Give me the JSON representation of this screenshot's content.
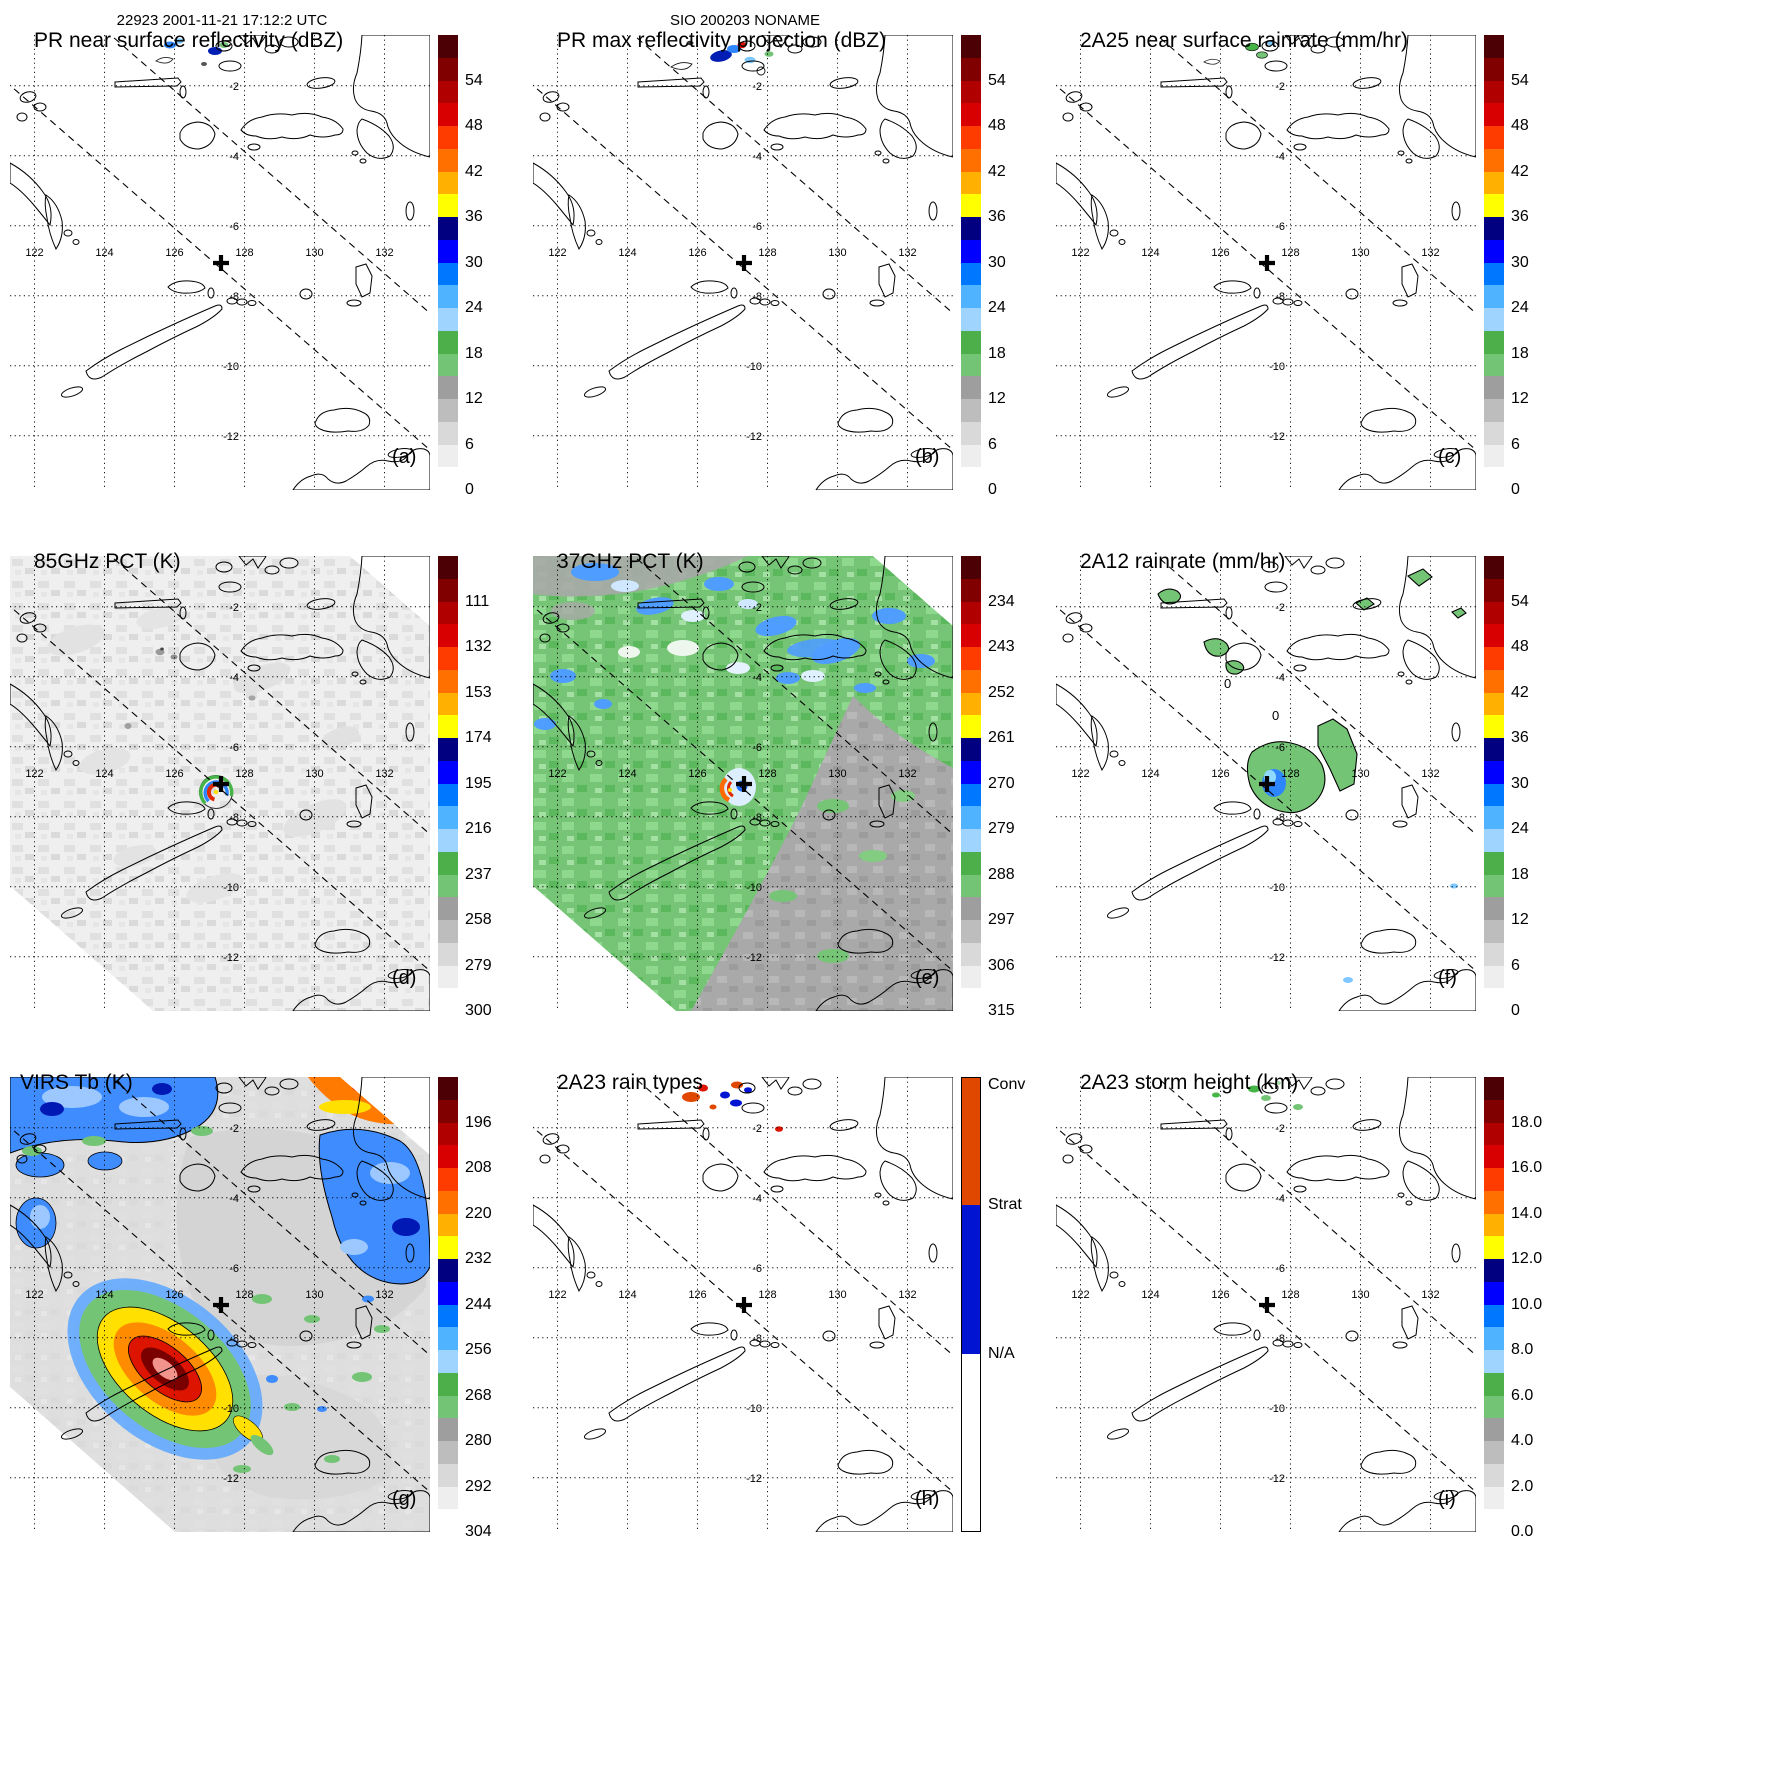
{
  "header": {
    "left_title": "22923 2001-11-21 17:12:2 UTC",
    "center_title": "SIO 200203 NONAME"
  },
  "axes": {
    "lon_ticks": [
      "122",
      "124",
      "126",
      "128",
      "130",
      "132"
    ],
    "lat_ticks": [
      "-2",
      "-4",
      "-6",
      "-8",
      "-10",
      "-12"
    ]
  },
  "marker": {
    "symbol": "+",
    "approx_position": "127.4E, 6.9S"
  },
  "scales": {
    "spectral_colors": [
      "#4c0005",
      "#800000",
      "#b00000",
      "#d80000",
      "#ff3c00",
      "#ff7000",
      "#ffb000",
      "#ffff00",
      "#000080",
      "#0000ff",
      "#0077ff",
      "#4fb3ff",
      "#9fd4ff",
      "#4daf4a",
      "#74c476",
      "#9e9e9e",
      "#bdbdbd",
      "#d9d9d9",
      "#eeeeee",
      "#ffffff"
    ],
    "raintype_colors": {
      "conv": "#e04800",
      "strat": "#0014d2",
      "na": "#ffffff"
    }
  },
  "colorbars": {
    "dbz": {
      "ticks": [
        "54",
        "48",
        "42",
        "36",
        "30",
        "24",
        "18",
        "12",
        "6",
        "0"
      ]
    },
    "pct85": {
      "ticks": [
        "111",
        "132",
        "153",
        "174",
        "195",
        "216",
        "237",
        "258",
        "279",
        "300"
      ]
    },
    "pct37": {
      "ticks": [
        "234",
        "243",
        "252",
        "261",
        "270",
        "279",
        "288",
        "297",
        "306",
        "315"
      ]
    },
    "virs": {
      "ticks": [
        "196",
        "208",
        "220",
        "232",
        "244",
        "256",
        "268",
        "280",
        "292",
        "304"
      ]
    },
    "height": {
      "ticks": [
        "18.0",
        "16.0",
        "14.0",
        "12.0",
        "10.0",
        "8.0",
        "6.0",
        "4.0",
        "2.0",
        "0.0"
      ]
    },
    "raintype": {
      "labels": [
        "Conv",
        "Strat",
        "N/A"
      ]
    }
  },
  "panels": [
    {
      "letter": "(a)",
      "title": "PR near surface reflectivity (dBZ)",
      "colorbar": "dbz"
    },
    {
      "letter": "(b)",
      "title": "PR max reflectivity projection (dBZ)",
      "colorbar": "dbz"
    },
    {
      "letter": "(c)",
      "title": "2A25 near surface rainrate (mm/hr)",
      "colorbar": "dbz"
    },
    {
      "letter": "(d)",
      "title": "85GHz PCT (K)",
      "colorbar": "pct85"
    },
    {
      "letter": "(e)",
      "title": "37GHz PCT (K)",
      "colorbar": "pct37"
    },
    {
      "letter": "(f)",
      "title": "2A12 rainrate (mm/hr)",
      "colorbar": "dbz",
      "contour_label": "0"
    },
    {
      "letter": "(g)",
      "title": "VIRS Tb (K)",
      "colorbar": "virs"
    },
    {
      "letter": "(h)",
      "title": "2A23 rain types",
      "colorbar": "raintype"
    },
    {
      "letter": "(i)",
      "title": "2A23 storm height (km)",
      "colorbar": "height"
    }
  ],
  "chart_data": {
    "figure_type": "satellite_overpass_multipanel_heatmap",
    "orbit_header": "22923 2001-11-21 17:12:2 UTC",
    "storm_header": "SIO 200203 NONAME",
    "map_extent": {
      "lon_gridlines": [
        122,
        124,
        126,
        128,
        130,
        132
      ],
      "lat_gridlines": [
        -2,
        -4,
        -6,
        -8,
        -10,
        -12
      ]
    },
    "storm_center_marker": {
      "symbol": "+",
      "approx_lon": 127.4,
      "approx_lat": -6.9
    },
    "panels": [
      {
        "label": "(a)",
        "type": "heatmap",
        "title": "PR near surface reflectivity (dBZ)",
        "units": "dBZ",
        "scale_ticks_top_to_bottom": [
          54,
          48,
          42,
          36,
          30,
          24,
          18,
          12,
          6,
          0
        ]
      },
      {
        "label": "(b)",
        "type": "heatmap",
        "title": "PR max reflectivity projection (dBZ)",
        "units": "dBZ",
        "scale_ticks_top_to_bottom": [
          54,
          48,
          42,
          36,
          30,
          24,
          18,
          12,
          6,
          0
        ]
      },
      {
        "label": "(c)",
        "type": "heatmap",
        "title": "2A25 near surface rainrate (mm/hr)",
        "units": "mm/hr",
        "scale_ticks_top_to_bottom": [
          54,
          48,
          42,
          36,
          30,
          24,
          18,
          12,
          6,
          0
        ]
      },
      {
        "label": "(d)",
        "type": "heatmap",
        "title": "85GHz PCT (K)",
        "units": "K",
        "scale_ticks_top_to_bottom": [
          111,
          132,
          153,
          174,
          195,
          216,
          237,
          258,
          279,
          300
        ]
      },
      {
        "label": "(e)",
        "type": "heatmap",
        "title": "37GHz PCT (K)",
        "units": "K",
        "scale_ticks_top_to_bottom": [
          234,
          243,
          252,
          261,
          270,
          279,
          288,
          297,
          306,
          315
        ]
      },
      {
        "label": "(f)",
        "type": "heatmap",
        "title": "2A12 rainrate (mm/hr)",
        "units": "mm/hr",
        "scale_ticks_top_to_bottom": [
          54,
          48,
          42,
          36,
          30,
          24,
          18,
          12,
          6,
          0
        ],
        "contour_labels": [
          "0",
          "0"
        ]
      },
      {
        "label": "(g)",
        "type": "heatmap",
        "title": "VIRS Tb (K)",
        "units": "K",
        "scale_ticks_top_to_bottom": [
          196,
          208,
          220,
          232,
          244,
          256,
          268,
          280,
          292,
          304
        ]
      },
      {
        "label": "(h)",
        "type": "heatmap",
        "title": "2A23 rain types",
        "categories_top_to_bottom": [
          "Conv",
          "Strat",
          "N/A"
        ]
      },
      {
        "label": "(i)",
        "type": "heatmap",
        "title": "2A23 storm height (km)",
        "units": "km",
        "scale_ticks_top_to_bottom": [
          18.0,
          16.0,
          14.0,
          12.0,
          10.0,
          8.0,
          6.0,
          4.0,
          2.0,
          0.0
        ]
      }
    ]
  }
}
